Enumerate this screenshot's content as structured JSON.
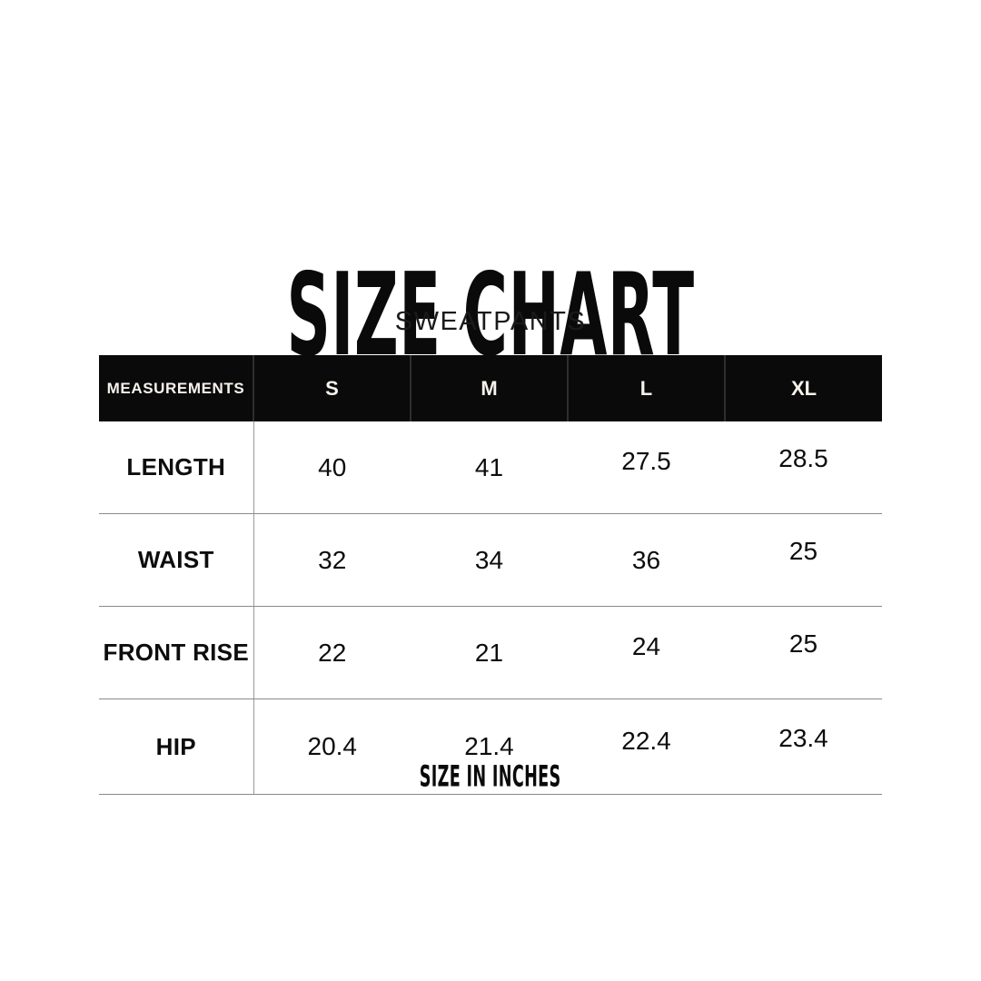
{
  "chart_data": {
    "type": "table",
    "title": "SIZE CHART",
    "subtitle": "SWEATPANTS",
    "footnote": "SIZE IN INCHES",
    "unit": "inches",
    "columns": [
      "MEASUREMENTS",
      "S",
      "M",
      "L",
      "XL"
    ],
    "rows": [
      {
        "label": "LENGTH",
        "values": [
          "40",
          "41",
          "27.5",
          "28.5"
        ]
      },
      {
        "label": "WAIST",
        "values": [
          "32",
          "34",
          "36",
          "25"
        ]
      },
      {
        "label": "FRONT RISE",
        "values": [
          "22",
          "21",
          "24",
          "25"
        ]
      },
      {
        "label": "HIP",
        "values": [
          "20.4",
          "21.4",
          "22.4",
          "23.4"
        ]
      }
    ]
  },
  "colors": {
    "background": "#ffffff",
    "header_bg": "#0a0a0a",
    "header_text": "#f6f3ec",
    "grid_line": "#8a8a8a",
    "text": "#111111"
  }
}
